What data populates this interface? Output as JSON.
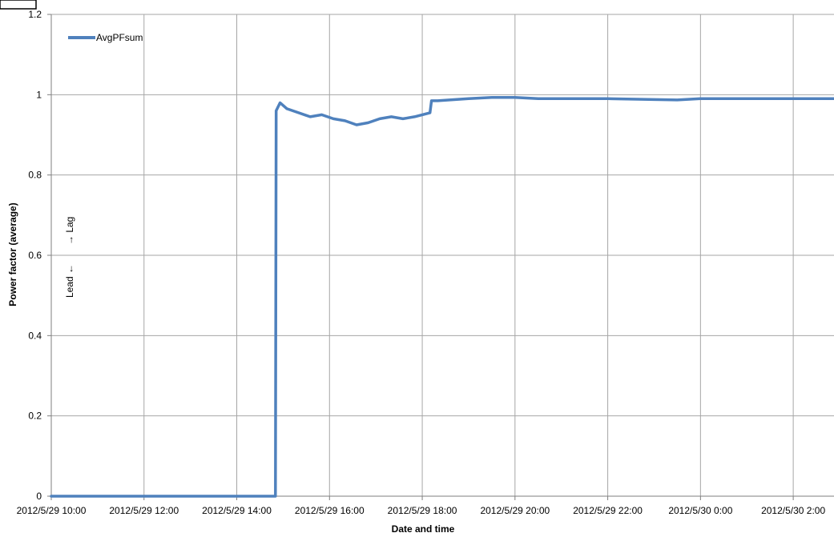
{
  "chart_data": {
    "type": "line",
    "xlabel": "Date and time",
    "ylabel": "Power factor (average)",
    "ylim": [
      0,
      1.2
    ],
    "yticks": [
      "0",
      "0.2",
      "0.4",
      "0.6",
      "0.8",
      "1",
      "1.2"
    ],
    "xlim": [
      "2012/5/29 10:00",
      "2012/5/30 3:00"
    ],
    "xticks": [
      "2012/5/29 10:00",
      "2012/5/29 12:00",
      "2012/5/29 14:00",
      "2012/5/29 16:00",
      "2012/5/29 18:00",
      "2012/5/29 20:00",
      "2012/5/29 22:00",
      "2012/5/30 0:00",
      "2012/5/30 2:00"
    ],
    "grid": true,
    "legend_position": "top-left",
    "annotations": {
      "lag": "→ Lag",
      "lead": "Lead ←"
    },
    "colors": {
      "series": "#4F81BD",
      "grid": "#A6A6A6",
      "axis": "#7F7F7F"
    },
    "series": [
      {
        "name": "AvgPFsum",
        "x": [
          "2012/5/29 10:00",
          "2012/5/29 14:50",
          "2012/5/29 14:51",
          "2012/5/29 14:56",
          "2012/5/29 15:05",
          "2012/5/29 15:20",
          "2012/5/29 15:35",
          "2012/5/29 15:50",
          "2012/5/29 16:05",
          "2012/5/29 16:20",
          "2012/5/29 16:35",
          "2012/5/29 16:50",
          "2012/5/29 17:05",
          "2012/5/29 17:20",
          "2012/5/29 17:35",
          "2012/5/29 17:50",
          "2012/5/29 18:00",
          "2012/5/29 18:10",
          "2012/5/29 18:12",
          "2012/5/29 18:20",
          "2012/5/29 19:00",
          "2012/5/29 19:30",
          "2012/5/29 20:00",
          "2012/5/29 20:30",
          "2012/5/29 21:00",
          "2012/5/29 22:00",
          "2012/5/29 23:00",
          "2012/5/29 23:30",
          "2012/5/30 0:00",
          "2012/5/30 1:00",
          "2012/5/30 2:00",
          "2012/5/30 2:30",
          "2012/5/30 3:00"
        ],
        "y": [
          0,
          0,
          0.96,
          0.98,
          0.965,
          0.955,
          0.945,
          0.95,
          0.94,
          0.935,
          0.925,
          0.93,
          0.94,
          0.945,
          0.94,
          0.945,
          0.95,
          0.955,
          0.985,
          0.985,
          0.99,
          0.993,
          0.993,
          0.99,
          0.99,
          0.99,
          0.988,
          0.987,
          0.99,
          0.99,
          0.99,
          0.99,
          0.99
        ]
      }
    ]
  }
}
